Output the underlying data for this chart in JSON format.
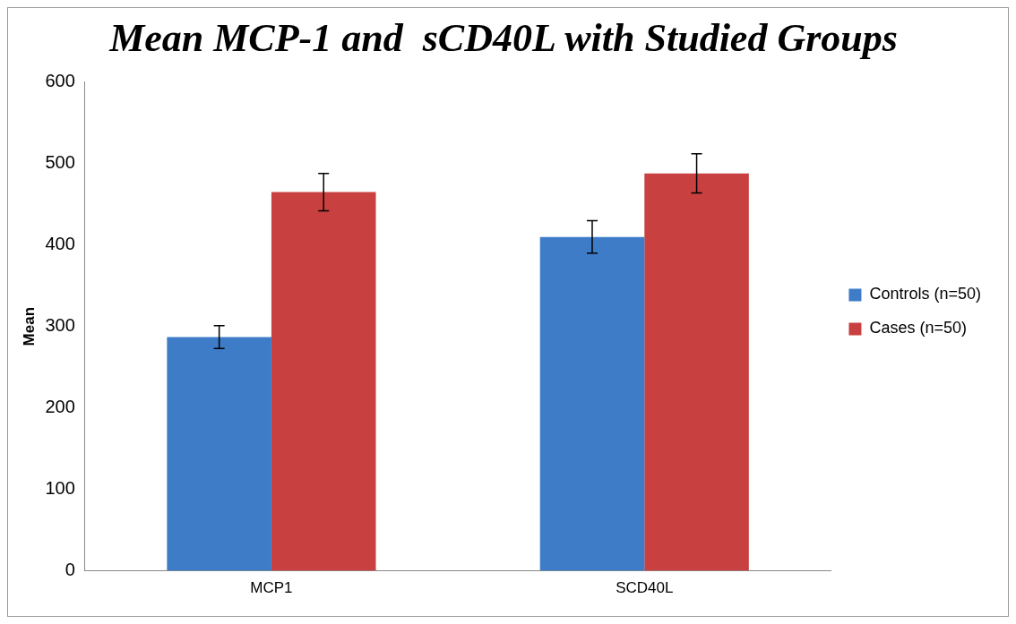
{
  "chart_data": {
    "type": "bar",
    "title": "Mean MCP-1 and  sCD40L with Studied Groups",
    "ylabel": "Mean",
    "categories": [
      "MCP1",
      "SCD40L"
    ],
    "series": [
      {
        "name": "Controls (n=50)",
        "color": "#3f7cc8",
        "values": [
          287,
          410
        ],
        "errors": [
          14,
          20
        ]
      },
      {
        "name": "Cases (n=50)",
        "color": "#c94040",
        "values": [
          465,
          488
        ],
        "errors": [
          23,
          24
        ]
      }
    ],
    "ylim": [
      0,
      600
    ],
    "yticks": [
      0,
      100,
      200,
      300,
      400,
      500,
      600
    ],
    "grid": false,
    "legend": "right"
  }
}
